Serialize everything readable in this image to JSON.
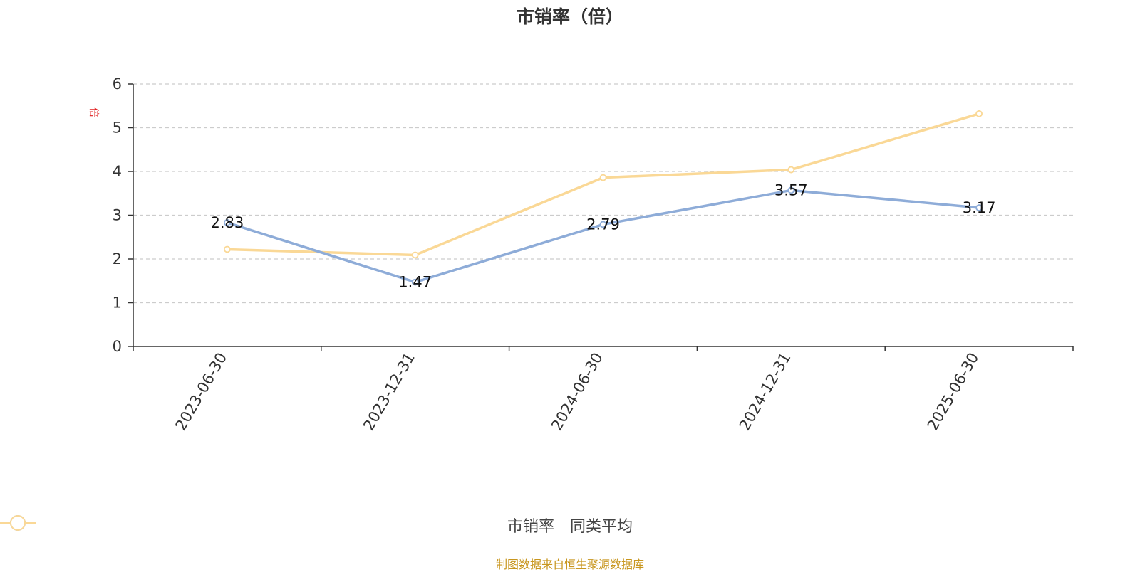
{
  "chart_data": {
    "type": "line",
    "title": "市销率（倍）",
    "ylabel": "倍",
    "categories": [
      "2023-06-30",
      "2023-12-31",
      "2024-06-30",
      "2024-12-31",
      "2025-06-30"
    ],
    "ylim": [
      0,
      6
    ],
    "yticks": [
      0,
      1,
      2,
      3,
      4,
      5,
      6
    ],
    "grid": true,
    "legend_position": "bottom",
    "series": [
      {
        "name": "市销率",
        "values": [
          2.83,
          1.47,
          2.79,
          3.57,
          3.17
        ],
        "color": "#8eacd8",
        "show_labels": true
      },
      {
        "name": "同类平均",
        "values": [
          2.22,
          2.09,
          3.86,
          4.04,
          5.32
        ],
        "color": "#fad896",
        "show_labels": false
      }
    ]
  },
  "source_text": "制图数据来自恒生聚源数据库",
  "ylabel_color": "#e02020"
}
